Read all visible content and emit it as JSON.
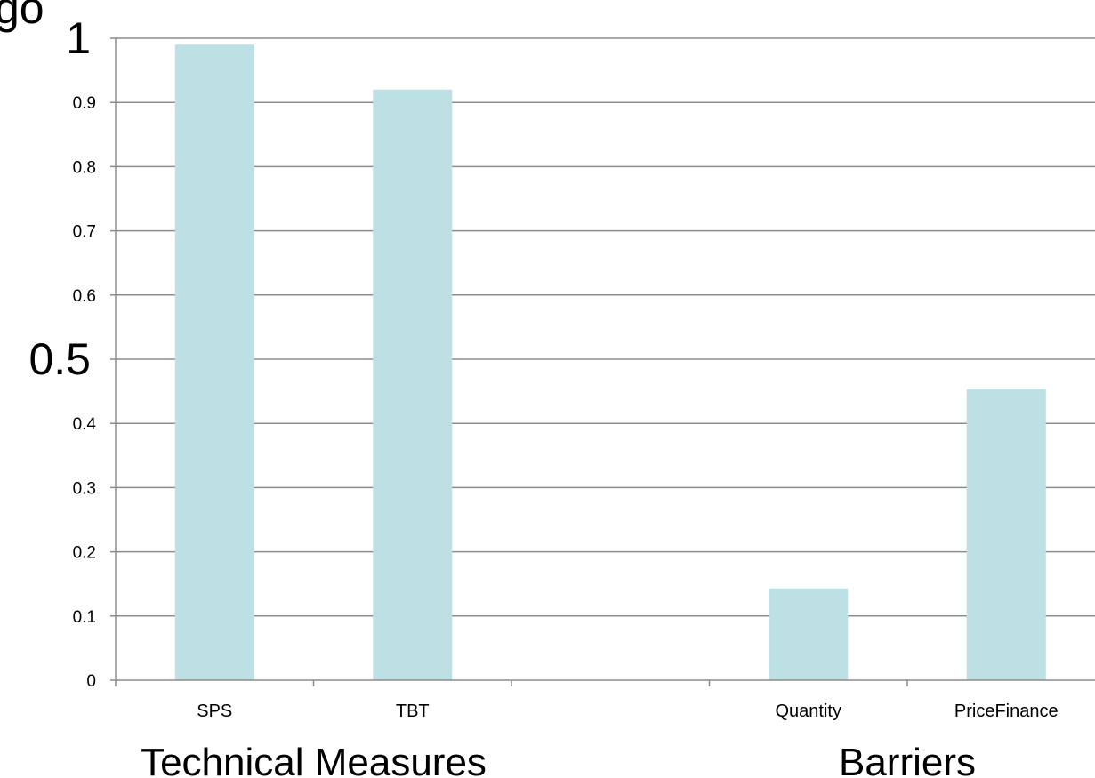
{
  "chart_data": {
    "type": "bar",
    "categories": [
      "SPS",
      "TBT",
      "",
      "Quantity",
      "PriceFinance"
    ],
    "values": [
      0.99,
      0.92,
      null,
      0.143,
      0.453
    ],
    "ylim": [
      0,
      1
    ],
    "yticks": [
      "0",
      "0.1",
      "0.2",
      "0.3",
      "0.4",
      "0.5",
      "0.6",
      "0.7",
      "0.8",
      "0.9",
      "1"
    ],
    "grid": true,
    "groups": [
      {
        "label": "Technical Measures",
        "categories": [
          "SPS",
          "TBT"
        ]
      },
      {
        "label": "Barriers",
        "categories": [
          "Quantity",
          "PriceFinance"
        ]
      }
    ],
    "partial_text": "go",
    "bar_color": "#bde0e4"
  }
}
